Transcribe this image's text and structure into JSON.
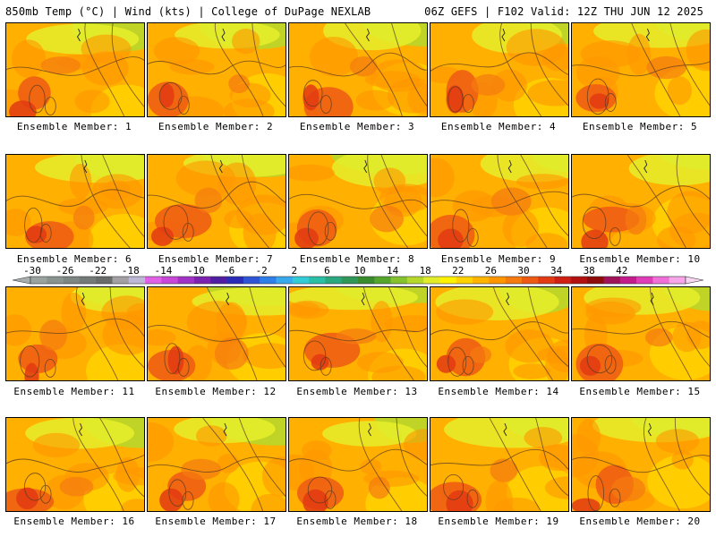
{
  "header": {
    "left": "850mb Temp (°C) | Wind (kts) | College of DuPage NEXLAB",
    "right": "06Z GEFS | F102 Valid: 12Z THU JUN 12 2025"
  },
  "panels": [
    {
      "label": "Ensemble Member: 1"
    },
    {
      "label": "Ensemble Member: 2"
    },
    {
      "label": "Ensemble Member: 3"
    },
    {
      "label": "Ensemble Member: 4"
    },
    {
      "label": "Ensemble Member: 5"
    },
    {
      "label": "Ensemble Member: 6"
    },
    {
      "label": "Ensemble Member: 7"
    },
    {
      "label": "Ensemble Member: 8"
    },
    {
      "label": "Ensemble Member: 9"
    },
    {
      "label": "Ensemble Member: 10"
    },
    {
      "label": "Ensemble Member: 11"
    },
    {
      "label": "Ensemble Member: 12"
    },
    {
      "label": "Ensemble Member: 13"
    },
    {
      "label": "Ensemble Member: 14"
    },
    {
      "label": "Ensemble Member: 15"
    },
    {
      "label": "Ensemble Member: 16"
    },
    {
      "label": "Ensemble Member: 17"
    },
    {
      "label": "Ensemble Member: 18"
    },
    {
      "label": "Ensemble Member: 19"
    },
    {
      "label": "Ensemble Member: 20"
    }
  ],
  "colorbar": {
    "labels": [
      "-30",
      "-26",
      "-22",
      "-18",
      "-14",
      "-10",
      "-6",
      "-2",
      "2",
      "6",
      "10",
      "14",
      "18",
      "22",
      "26",
      "30",
      "34",
      "38",
      "42"
    ],
    "colors": [
      "#9aa39e",
      "#8a948f",
      "#7e8683",
      "#737a78",
      "#696c6b",
      "#a3a0a3",
      "#bdb8d6",
      "#e060e6",
      "#c846d8",
      "#a033c6",
      "#7b23b0",
      "#4f1ea3",
      "#2a2cb8",
      "#2f55d6",
      "#2e7fe8",
      "#39a9ee",
      "#33ccd6",
      "#2bbfa6",
      "#2aa87f",
      "#2f9757",
      "#3a8a2e",
      "#56a52c",
      "#86c22e",
      "#b6d82b",
      "#e3ec28",
      "#fff200",
      "#ffd200",
      "#ffb400",
      "#ff9600",
      "#f57a10",
      "#ee5a14",
      "#e23a12",
      "#cf1e12",
      "#b31010",
      "#8f0c0c",
      "#a0125a",
      "#c41c8c",
      "#e03cb8",
      "#f070d8",
      "#f7a6ea"
    ]
  }
}
